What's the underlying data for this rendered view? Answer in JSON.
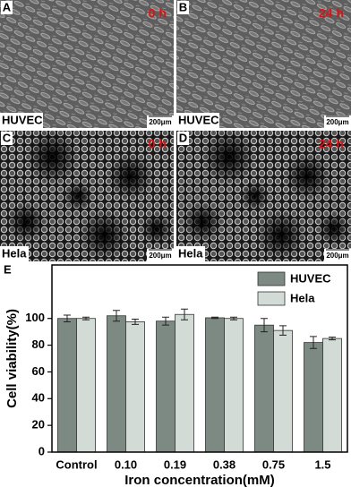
{
  "panels": [
    {
      "letter": "A",
      "time": "0 h",
      "cell": "HUVEC",
      "scale": "200μm"
    },
    {
      "letter": "B",
      "time": "24 h",
      "cell": "HUVEC",
      "scale": "200μm"
    },
    {
      "letter": "C",
      "time": "0 h",
      "cell": "Hela",
      "scale": "200μm"
    },
    {
      "letter": "D",
      "time": "24 h",
      "cell": "Hela",
      "scale": "200μm"
    }
  ],
  "chart_data": {
    "type": "bar",
    "panel_label": "E",
    "x_label": "Iron concentration(mM)",
    "y_label": "Cell viability(%)",
    "categories": [
      "Control",
      "0.10",
      "0.19",
      "0.38",
      "0.75",
      "1.5"
    ],
    "series": [
      {
        "name": "HUVEC",
        "color": "#7d8983",
        "values": [
          100,
          102,
          98,
          100.5,
          95,
          82
        ],
        "errors": [
          2.5,
          4,
          3,
          0.5,
          5,
          4.5
        ]
      },
      {
        "name": "Hela",
        "color": "#d2dbd5",
        "values": [
          100,
          97.5,
          103,
          100,
          91,
          85
        ],
        "errors": [
          1,
          2,
          4,
          1,
          3.5,
          1
        ]
      }
    ],
    "ylim": [
      0,
      140
    ],
    "yticks": [
      0,
      20,
      40,
      60,
      80,
      100
    ],
    "legend": "upper right"
  }
}
